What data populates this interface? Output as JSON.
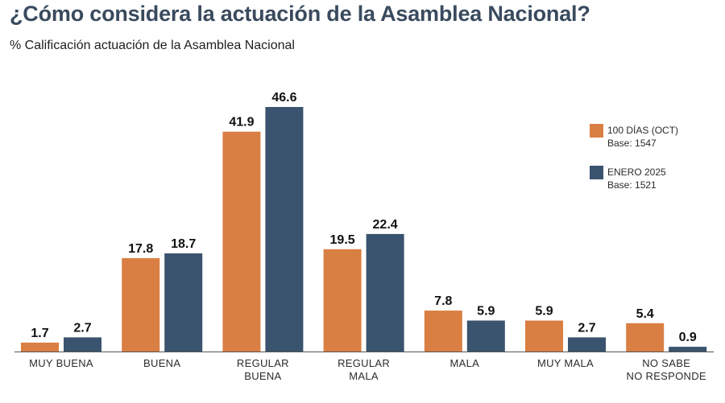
{
  "title": "¿Cómo considera la actuación de la Asamblea Nacional?",
  "subtitle": "% Calificación actuación de la Asamblea Nacional",
  "colors": {
    "series1": "#d97f43",
    "series2": "#3a536e",
    "axis": "#555555"
  },
  "legend": [
    {
      "name": "100 DÍAS (OCT)",
      "base": "Base: 1547"
    },
    {
      "name": "ENERO 2025",
      "base": "Base: 1521"
    }
  ],
  "chart_data": {
    "type": "bar",
    "title": "¿Cómo considera la actuación de la Asamblea Nacional?",
    "subtitle": "% Calificación actuación de la Asamblea Nacional",
    "categories": [
      [
        "MUY BUENA"
      ],
      [
        "BUENA"
      ],
      [
        "REGULAR",
        "BUENA"
      ],
      [
        "REGULAR",
        "MALA"
      ],
      [
        "MALA"
      ],
      [
        "MUY MALA"
      ],
      [
        "NO SABE",
        "NO RESPONDE"
      ]
    ],
    "series": [
      {
        "name": "100 DÍAS (OCT)",
        "values": [
          1.7,
          17.8,
          41.9,
          19.5,
          7.8,
          5.9,
          5.4
        ]
      },
      {
        "name": "ENERO 2025",
        "values": [
          2.7,
          18.7,
          46.6,
          22.4,
          5.9,
          2.7,
          0.9
        ]
      }
    ],
    "legend_position": "top-right",
    "ylim": [
      0,
      46.6
    ]
  }
}
